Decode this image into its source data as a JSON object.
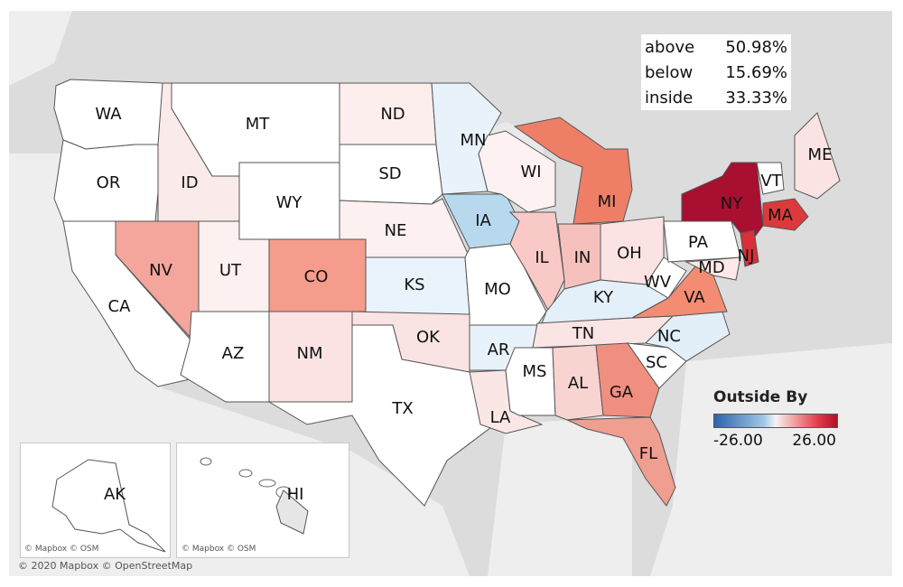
{
  "stats": [
    {
      "key": "above",
      "value": "50.98%"
    },
    {
      "key": "below",
      "value": "15.69%"
    },
    {
      "key": "inside",
      "value": "33.33%"
    }
  ],
  "legend": {
    "title": "Outside By",
    "min_label": "-26.00",
    "max_label": "26.00",
    "colors": {
      "negative": "#2f63ad",
      "neutral": "#f3f3f3",
      "positive": "#b1102a"
    }
  },
  "credits": {
    "main": "© 2020 Mapbox © OpenStreetMap",
    "inset_ak": "© Mapbox © OSM",
    "inset_hi": "© Mapbox © OSM"
  },
  "states": [
    {
      "code": "WA",
      "color": "#ffffff"
    },
    {
      "code": "OR",
      "color": "#ffffff"
    },
    {
      "code": "CA",
      "color": "#ffffff"
    },
    {
      "code": "ID",
      "color": "#fbeaea"
    },
    {
      "code": "NV",
      "color": "#f4a59c"
    },
    {
      "code": "MT",
      "color": "#ffffff"
    },
    {
      "code": "WY",
      "color": "#ffffff"
    },
    {
      "code": "UT",
      "color": "#fdf0f0"
    },
    {
      "code": "AZ",
      "color": "#ffffff"
    },
    {
      "code": "CO",
      "color": "#f59c8c"
    },
    {
      "code": "NM",
      "color": "#fbe3e3"
    },
    {
      "code": "ND",
      "color": "#fdeeee"
    },
    {
      "code": "SD",
      "color": "#ffffff"
    },
    {
      "code": "NE",
      "color": "#fdf0f0"
    },
    {
      "code": "KS",
      "color": "#e9f3fb"
    },
    {
      "code": "OK",
      "color": "#fae3e3"
    },
    {
      "code": "TX",
      "color": "#ffffff"
    },
    {
      "code": "MN",
      "color": "#e7f2fb"
    },
    {
      "code": "IA",
      "color": "#b8d8ee"
    },
    {
      "code": "MO",
      "color": "#ffffff"
    },
    {
      "code": "AR",
      "color": "#e8f2fb"
    },
    {
      "code": "LA",
      "color": "#fbe6e6"
    },
    {
      "code": "WI",
      "color": "#fdf1f1"
    },
    {
      "code": "IL",
      "color": "#f8c9c6"
    },
    {
      "code": "MI",
      "color": "#ee7f66"
    },
    {
      "code": "IN",
      "color": "#f6c1bd"
    },
    {
      "code": "OH",
      "color": "#fbe3e3"
    },
    {
      "code": "KY",
      "color": "#e3eff9"
    },
    {
      "code": "TN",
      "color": "#fbe4e4"
    },
    {
      "code": "MS",
      "color": "#ffffff"
    },
    {
      "code": "AL",
      "color": "#f8d4d1"
    },
    {
      "code": "GA",
      "color": "#f08f80"
    },
    {
      "code": "FL",
      "color": "#f09e8f"
    },
    {
      "code": "SC",
      "color": "#ffffff"
    },
    {
      "code": "NC",
      "color": "#e2eff9"
    },
    {
      "code": "VA",
      "color": "#f38c73"
    },
    {
      "code": "WV",
      "color": "#ffffff"
    },
    {
      "code": "PA",
      "color": "#ffffff"
    },
    {
      "code": "MD",
      "color": "#fde9e9"
    },
    {
      "code": "NY",
      "color": "#a80f30"
    },
    {
      "code": "NJ",
      "color": "#d8303a"
    },
    {
      "code": "VT",
      "color": "#ffffff"
    },
    {
      "code": "ME",
      "color": "#fbe3e3"
    },
    {
      "code": "MA",
      "color": "#dc3a3a"
    },
    {
      "code": "AK",
      "color": "#ffffff"
    },
    {
      "code": "HI",
      "color": "#e6e6e6"
    }
  ]
}
